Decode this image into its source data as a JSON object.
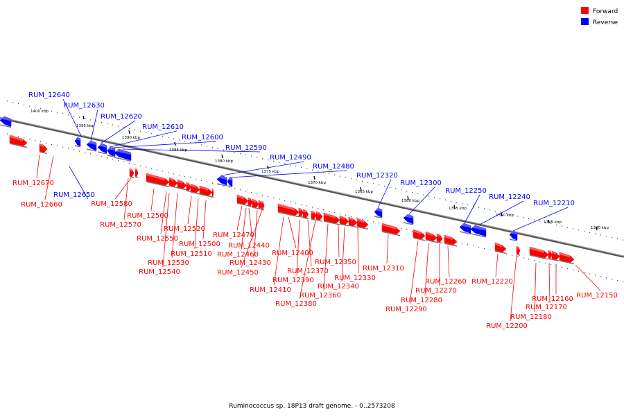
{
  "caption": "Ruminococcus sp. 18P13 draft genome. - 0..2573208",
  "legend": [
    {
      "label": "Forward",
      "color": "#ff0000"
    },
    {
      "label": "Reverse",
      "color": "#0000ff"
    }
  ],
  "colors": {
    "forward": "#ff0000",
    "reverse": "#0000ff",
    "backbone": "#888888"
  },
  "ticks": [
    {
      "label": "1400 kbp"
    },
    {
      "label": "1395 kbp"
    },
    {
      "label": "1390 kbp"
    },
    {
      "label": "1385 kbp"
    },
    {
      "label": "1380 kbp"
    },
    {
      "label": "1375 kbp"
    },
    {
      "label": "1370 kbp"
    },
    {
      "label": "1365 kbp"
    },
    {
      "label": "1360 kbp"
    },
    {
      "label": "1355 kbp"
    },
    {
      "label": "1350 kbp"
    },
    {
      "label": "1345 kbp"
    },
    {
      "label": "1340 kbp"
    }
  ],
  "genes": [
    {
      "name": "RUM_12640",
      "strand": "reverse"
    },
    {
      "name": "RUM_12630",
      "strand": "reverse"
    },
    {
      "name": "RUM_12620",
      "strand": "reverse"
    },
    {
      "name": "RUM_12610",
      "strand": "reverse"
    },
    {
      "name": "RUM_12600",
      "strand": "reverse"
    },
    {
      "name": "RUM_12590",
      "strand": "reverse"
    },
    {
      "name": "RUM_12490",
      "strand": "reverse"
    },
    {
      "name": "RUM_12480",
      "strand": "reverse"
    },
    {
      "name": "RUM_12320",
      "strand": "reverse"
    },
    {
      "name": "RUM_12300",
      "strand": "reverse"
    },
    {
      "name": "RUM_12250",
      "strand": "reverse"
    },
    {
      "name": "RUM_12240",
      "strand": "reverse"
    },
    {
      "name": "RUM_12210",
      "strand": "reverse"
    },
    {
      "name": "RUM_12650",
      "strand": "reverse"
    },
    {
      "name": "RUM_12670",
      "strand": "forward"
    },
    {
      "name": "RUM_12660",
      "strand": "forward"
    },
    {
      "name": "RUM_12580",
      "strand": "forward"
    },
    {
      "name": "RUM_12570",
      "strand": "forward"
    },
    {
      "name": "RUM_12560",
      "strand": "forward"
    },
    {
      "name": "RUM_12550",
      "strand": "forward"
    },
    {
      "name": "RUM_12530",
      "strand": "forward"
    },
    {
      "name": "RUM_12540",
      "strand": "forward"
    },
    {
      "name": "RUM_12520",
      "strand": "forward"
    },
    {
      "name": "RUM_12510",
      "strand": "forward"
    },
    {
      "name": "RUM_12500",
      "strand": "forward"
    },
    {
      "name": "RUM_12470",
      "strand": "forward"
    },
    {
      "name": "RUM_12440",
      "strand": "forward"
    },
    {
      "name": "RUM_12460",
      "strand": "forward"
    },
    {
      "name": "RUM_12430",
      "strand": "forward"
    },
    {
      "name": "RUM_12450",
      "strand": "forward"
    },
    {
      "name": "RUM_12400",
      "strand": "forward"
    },
    {
      "name": "RUM_12410",
      "strand": "forward"
    },
    {
      "name": "RUM_12390",
      "strand": "forward"
    },
    {
      "name": "RUM_12370",
      "strand": "forward"
    },
    {
      "name": "RUM_12380",
      "strand": "forward"
    },
    {
      "name": "RUM_12360",
      "strand": "forward"
    },
    {
      "name": "RUM_12350",
      "strand": "forward"
    },
    {
      "name": "RUM_12340",
      "strand": "forward"
    },
    {
      "name": "RUM_12330",
      "strand": "forward"
    },
    {
      "name": "RUM_12310",
      "strand": "forward"
    },
    {
      "name": "RUM_12290",
      "strand": "forward"
    },
    {
      "name": "RUM_12280",
      "strand": "forward"
    },
    {
      "name": "RUM_12270",
      "strand": "forward"
    },
    {
      "name": "RUM_12260",
      "strand": "forward"
    },
    {
      "name": "RUM_12220",
      "strand": "forward"
    },
    {
      "name": "RUM_12200",
      "strand": "forward"
    },
    {
      "name": "RUM_12180",
      "strand": "forward"
    },
    {
      "name": "RUM_12170",
      "strand": "forward"
    },
    {
      "name": "RUM_12160",
      "strand": "forward"
    },
    {
      "name": "RUM_12150",
      "strand": "forward"
    }
  ]
}
